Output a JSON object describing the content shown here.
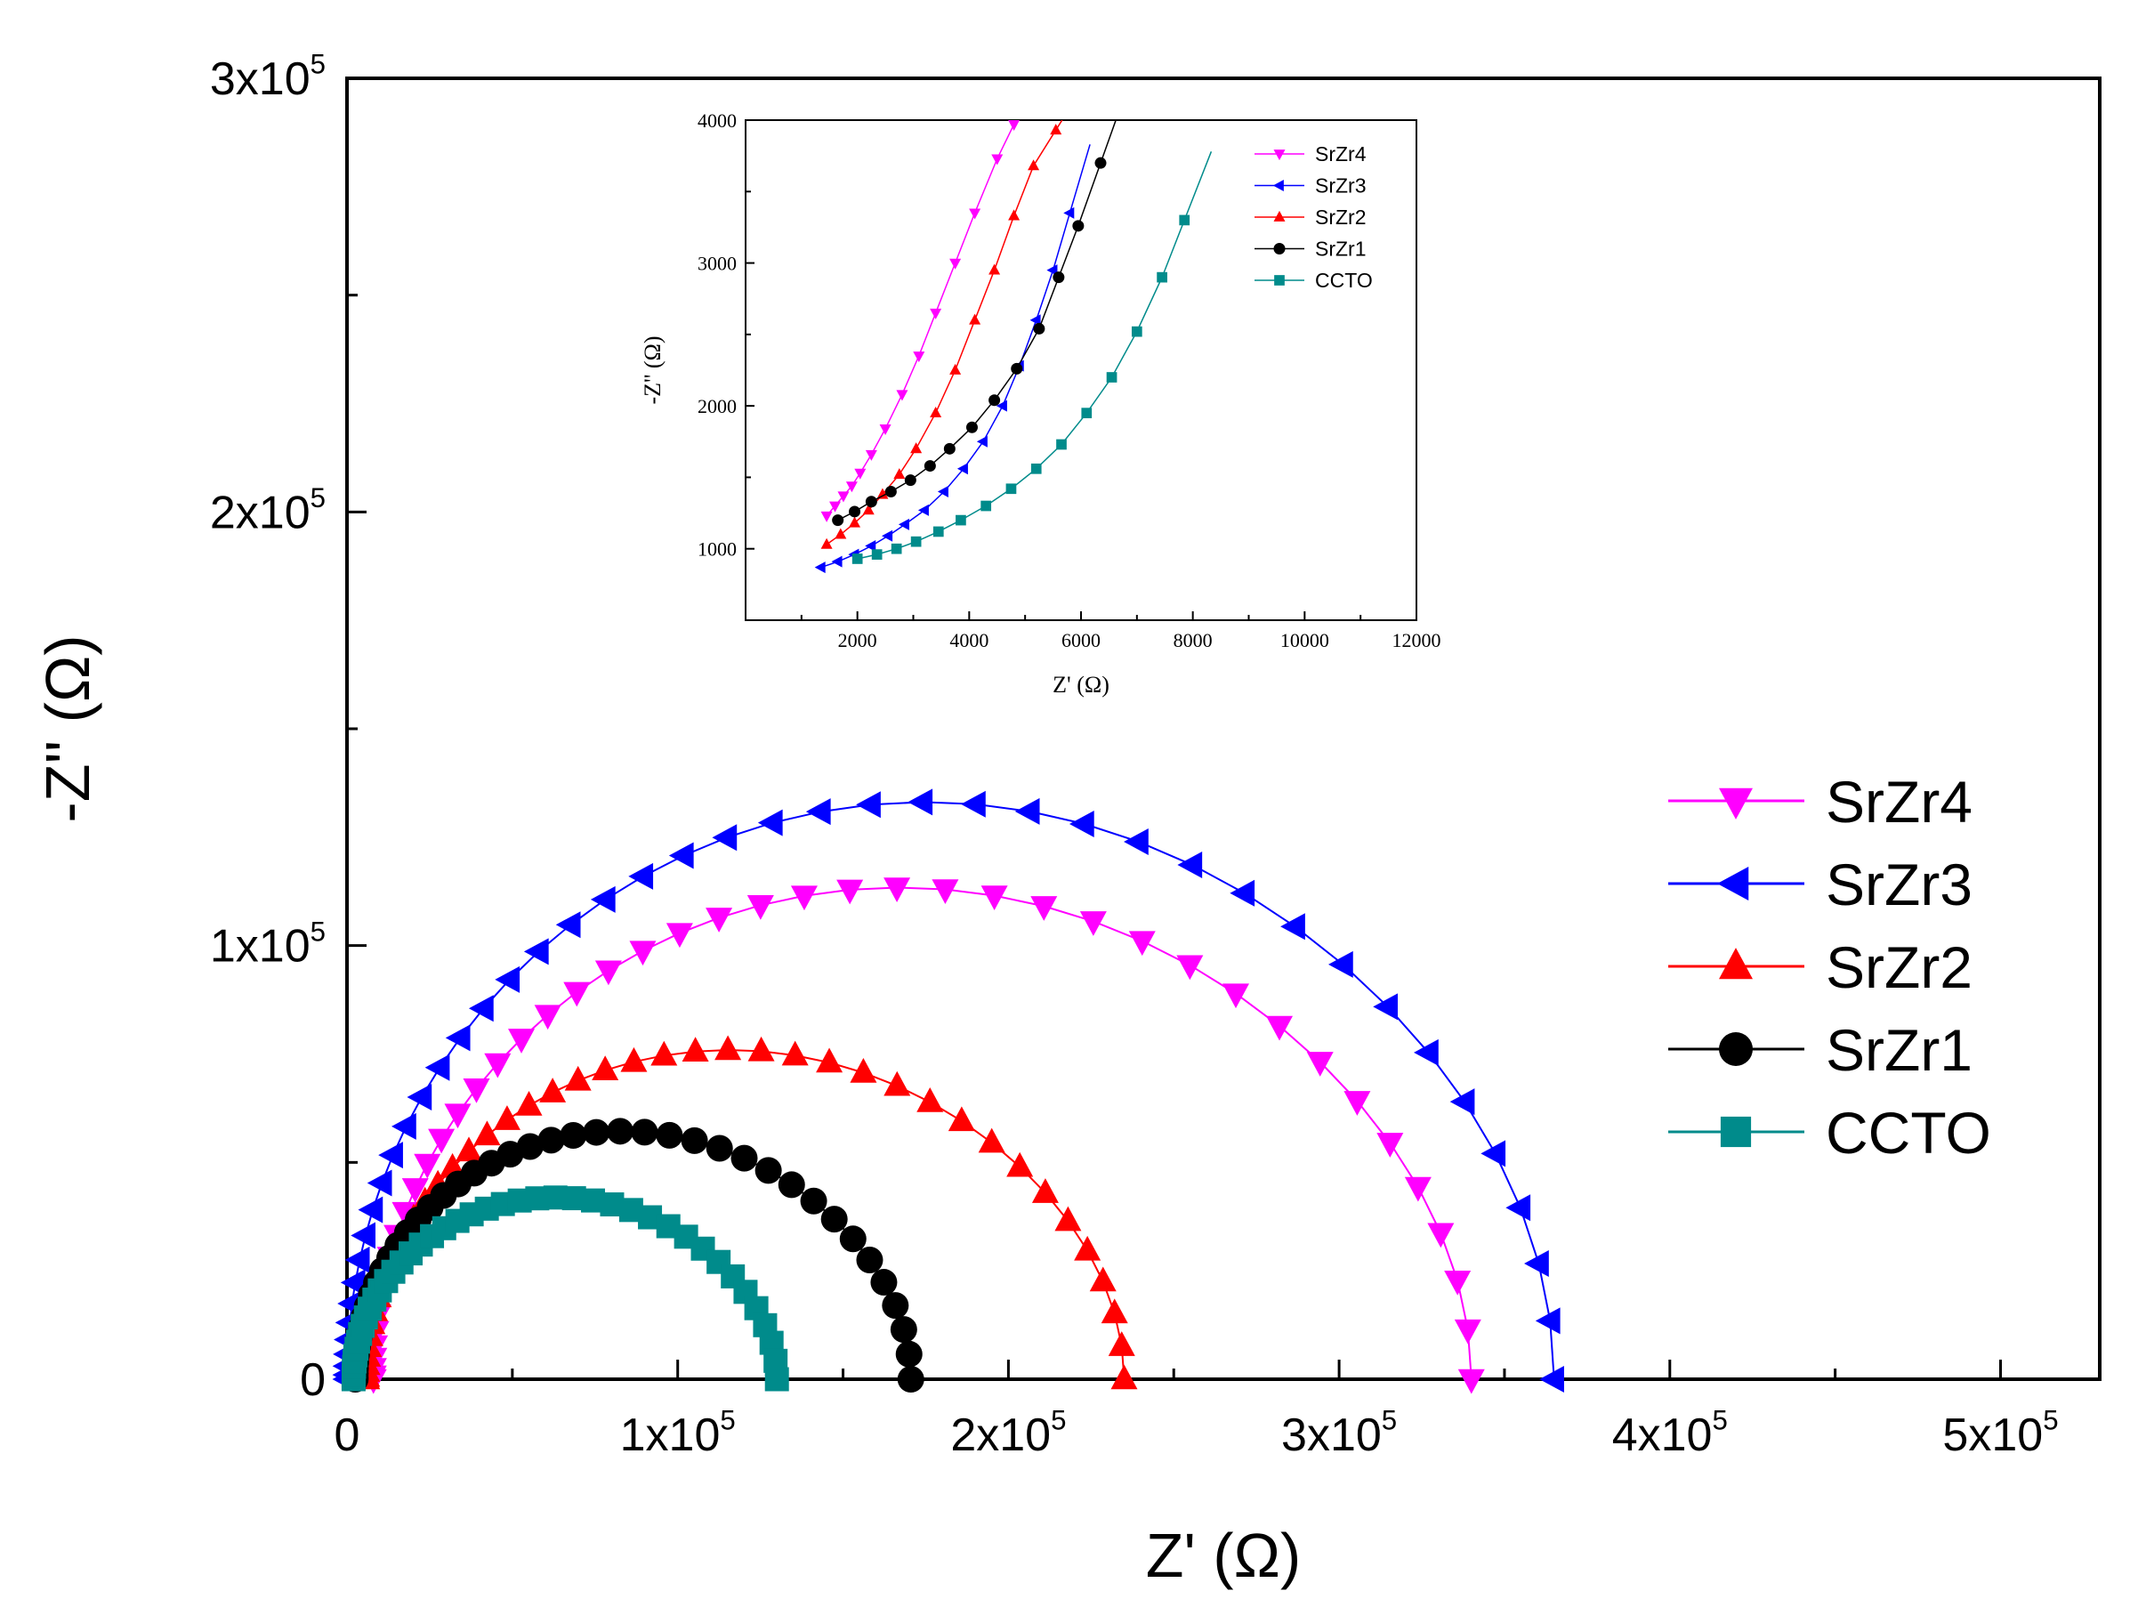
{
  "chart_data": [
    {
      "id": "main",
      "type": "scatter",
      "title": "",
      "xlabel": "Z' (Ω)",
      "ylabel": "-Z'' (Ω)",
      "xlim": [
        0,
        530000
      ],
      "ylim": [
        0,
        300000
      ],
      "x_ticks": [
        {
          "value": 0,
          "label": "0"
        },
        {
          "value": 100000,
          "label": "1x10",
          "exp": "5"
        },
        {
          "value": 200000,
          "label": "2x10",
          "exp": "5"
        },
        {
          "value": 300000,
          "label": "3x10",
          "exp": "5"
        },
        {
          "value": 400000,
          "label": "4x10",
          "exp": "5"
        },
        {
          "value": 500000,
          "label": "5x10",
          "exp": "5"
        }
      ],
      "y_ticks": [
        {
          "value": 0,
          "label": "0"
        },
        {
          "value": 100000,
          "label": "1x10",
          "exp": "5"
        },
        {
          "value": 200000,
          "label": "2x10",
          "exp": "5"
        },
        {
          "value": 300000,
          "label": "3x10",
          "exp": "5"
        }
      ],
      "legend_position": "right",
      "series": [
        {
          "name": "SrZr4",
          "marker": "triangle-down",
          "color": "#ff00ff",
          "intercept": 8000,
          "diameter": 332000,
          "peak": 115000
        },
        {
          "name": "SrZr3",
          "marker": "triangle-left",
          "color": "#0000ff",
          "intercept": 0,
          "diameter": 365000,
          "peak": 135000
        },
        {
          "name": "SrZr2",
          "marker": "triangle-up",
          "color": "#ff0000",
          "intercept": 6000,
          "diameter": 229000,
          "peak": 77000
        },
        {
          "name": "SrZr1",
          "marker": "circle",
          "color": "#000000",
          "intercept": 2500,
          "diameter": 168000,
          "peak": 58000
        },
        {
          "name": "CCTO",
          "marker": "square",
          "color": "#008b8b",
          "intercept": 2000,
          "diameter": 128000,
          "peak": 42500
        }
      ]
    },
    {
      "id": "inset",
      "type": "scatter",
      "title": "",
      "xlabel": "Z' (Ω)",
      "ylabel": "-Z'' (Ω)",
      "xlim": [
        0,
        12000
      ],
      "ylim": [
        500,
        4000
      ],
      "x_ticks": [
        2000,
        4000,
        6000,
        8000,
        10000,
        12000
      ],
      "y_ticks": [
        1000,
        2000,
        3000,
        4000
      ],
      "legend_position": "top-right",
      "series": [
        {
          "name": "SrZr4",
          "marker": "triangle-down",
          "color": "#ff00ff",
          "x": [
            1450,
            1600,
            1750,
            1900,
            2050,
            2250,
            2500,
            2800,
            3100,
            3400,
            3750,
            4100,
            4500,
            4800
          ],
          "y": [
            1230,
            1300,
            1370,
            1440,
            1530,
            1660,
            1840,
            2080,
            2350,
            2650,
            3000,
            3350,
            3730,
            3970
          ]
        },
        {
          "name": "SrZr3",
          "marker": "triangle-left",
          "color": "#0000ff",
          "x": [
            1350,
            1650,
            1950,
            2250,
            2550,
            2850,
            3200,
            3550,
            3900,
            4250,
            4600,
            4900,
            5200,
            5500,
            5800
          ],
          "y": [
            870,
            910,
            960,
            1020,
            1090,
            1170,
            1270,
            1400,
            1560,
            1750,
            2000,
            2280,
            2600,
            2950,
            3350
          ]
        },
        {
          "name": "SrZr2",
          "marker": "triangle-up",
          "color": "#ff0000",
          "x": [
            1450,
            1700,
            1950,
            2200,
            2450,
            2750,
            3050,
            3400,
            3750,
            4100,
            4450,
            4800,
            5150,
            5550
          ],
          "y": [
            1030,
            1100,
            1180,
            1270,
            1380,
            1520,
            1700,
            1950,
            2250,
            2600,
            2950,
            3330,
            3680,
            3930
          ]
        },
        {
          "name": "SrZr1",
          "marker": "circle",
          "color": "#000000",
          "x": [
            1650,
            1950,
            2250,
            2600,
            2950,
            3300,
            3650,
            4050,
            4450,
            4850,
            5250,
            5600,
            5950,
            6350
          ],
          "y": [
            1200,
            1260,
            1330,
            1400,
            1480,
            1580,
            1700,
            1850,
            2040,
            2260,
            2540,
            2900,
            3260,
            3700
          ]
        },
        {
          "name": "CCTO",
          "marker": "square",
          "color": "#008b8b",
          "x": [
            2000,
            2350,
            2700,
            3050,
            3450,
            3850,
            4300,
            4750,
            5200,
            5650,
            6100,
            6550,
            7000,
            7450,
            7850
          ],
          "y": [
            930,
            960,
            1000,
            1050,
            1120,
            1200,
            1300,
            1420,
            1560,
            1730,
            1950,
            2200,
            2520,
            2900,
            3300
          ]
        }
      ]
    }
  ]
}
